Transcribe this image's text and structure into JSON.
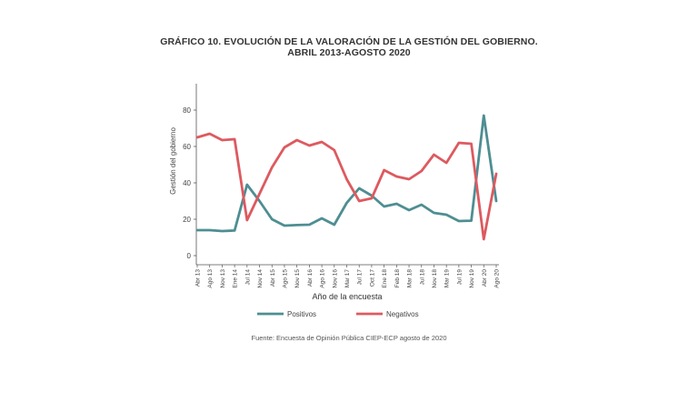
{
  "title": {
    "line1": "GRÁFICO 10. EVOLUCIÓN DE LA VALORACIÓN DE LA GESTIÓN DEL GOBIERNO.",
    "line2": "ABRIL 2013-AGOSTO 2020"
  },
  "source": "Fuente: Encuesta de Opinión Pública CIEP-ECP agosto de 2020",
  "colors": {
    "positivos": "#4e8e92",
    "negativos": "#dd5a5f",
    "axis": "#555555"
  },
  "chart_data": {
    "type": "line",
    "xlabel": "Año de la encuesta",
    "ylabel": "Gestión del gobierno",
    "ylim": [
      0,
      90
    ],
    "yticks": [
      0,
      20,
      40,
      60,
      80
    ],
    "grid": false,
    "legend": "bottom",
    "categories": [
      "Abr 13",
      "Ago 13",
      "Nov 13",
      "Ene 14",
      "Jul 14",
      "Nov 14",
      "Abr 15",
      "Ago 15",
      "Nov 15",
      "Abr 16",
      "Ago 16",
      "Nov 16",
      "Mar 17",
      "Jul 17",
      "Oct 17",
      "Ene 18",
      "Feb 18",
      "Mar 18",
      "Jul 18",
      "Nov 18",
      "Mar 19",
      "Jul 19",
      "Nov 19",
      "Abr 20",
      "Ago 20"
    ],
    "series": [
      {
        "name": "Positivos",
        "values": [
          14,
          14,
          13.5,
          13.8,
          39,
          30,
          20,
          16.5,
          16.8,
          17,
          20.5,
          17,
          29,
          37,
          33,
          27,
          28.5,
          25,
          28,
          23.5,
          22.5,
          19,
          19.2,
          77,
          30
        ]
      },
      {
        "name": "Negativos",
        "values": [
          65,
          67,
          63.5,
          64,
          19.5,
          34,
          48.5,
          59.5,
          63.5,
          60.5,
          62.5,
          58,
          42,
          30,
          31.5,
          47,
          43.5,
          42,
          46.5,
          55.5,
          51,
          62,
          61.5,
          9,
          45
        ]
      }
    ]
  }
}
